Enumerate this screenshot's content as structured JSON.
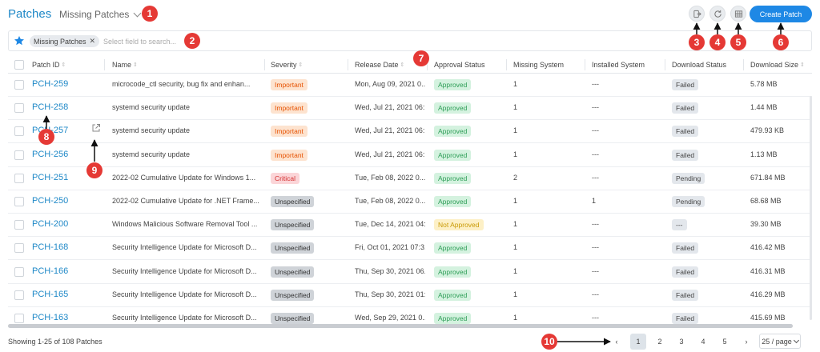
{
  "header": {
    "title": "Patches",
    "view_selector": "Missing Patches",
    "create_button": "Create Patch"
  },
  "icons": {
    "export": "export-icon",
    "refresh": "refresh-icon",
    "columns": "column-grid-icon",
    "favorite": "star-icon"
  },
  "search": {
    "chip_label": "Missing Patches",
    "placeholder": "Select field to search..."
  },
  "table": {
    "columns": [
      "Patch ID",
      "Name",
      "Severity",
      "Release Date",
      "Approval Status",
      "Missing System",
      "Installed System",
      "Download Status",
      "Download Size"
    ],
    "rows": [
      {
        "id": "PCH-259",
        "name": "microcode_ctl security, bug fix and enhan...",
        "severity": "Important",
        "release": "Mon, Aug 09, 2021 0...",
        "approval": "Approved",
        "missing": "1",
        "installed": "---",
        "download": "Failed",
        "size": "5.78 MB"
      },
      {
        "id": "PCH-258",
        "name": "systemd security update",
        "severity": "Important",
        "release": "Wed, Jul 21, 2021 06:...",
        "approval": "Approved",
        "missing": "1",
        "installed": "---",
        "download": "Failed",
        "size": "1.44 MB"
      },
      {
        "id": "PCH-257",
        "name": "systemd security update",
        "severity": "Important",
        "release": "Wed, Jul 21, 2021 06:...",
        "approval": "Approved",
        "missing": "1",
        "installed": "---",
        "download": "Failed",
        "size": "479.93 KB"
      },
      {
        "id": "PCH-256",
        "name": "systemd security update",
        "severity": "Important",
        "release": "Wed, Jul 21, 2021 06:...",
        "approval": "Approved",
        "missing": "1",
        "installed": "---",
        "download": "Failed",
        "size": "1.13 MB"
      },
      {
        "id": "PCH-251",
        "name": "2022-02 Cumulative Update for Windows 1...",
        "severity": "Critical",
        "release": "Tue, Feb 08, 2022 0...",
        "approval": "Approved",
        "missing": "2",
        "installed": "---",
        "download": "Pending",
        "size": "671.84 MB"
      },
      {
        "id": "PCH-250",
        "name": "2022-02 Cumulative Update for .NET Frame...",
        "severity": "Unspecified",
        "release": "Tue, Feb 08, 2022 0...",
        "approval": "Approved",
        "missing": "1",
        "installed": "1",
        "download": "Pending",
        "size": "68.68 MB"
      },
      {
        "id": "PCH-200",
        "name": "Windows Malicious Software Removal Tool ...",
        "severity": "Unspecified",
        "release": "Tue, Dec 14, 2021 04:...",
        "approval": "Not Approved",
        "missing": "1",
        "installed": "---",
        "download": "---",
        "size": "39.30 MB"
      },
      {
        "id": "PCH-168",
        "name": "Security Intelligence Update for Microsoft D...",
        "severity": "Unspecified",
        "release": "Fri, Oct 01, 2021 07:3...",
        "approval": "Approved",
        "missing": "1",
        "installed": "---",
        "download": "Failed",
        "size": "416.42 MB"
      },
      {
        "id": "PCH-166",
        "name": "Security Intelligence Update for Microsoft D...",
        "severity": "Unspecified",
        "release": "Thu, Sep 30, 2021 06...",
        "approval": "Approved",
        "missing": "1",
        "installed": "---",
        "download": "Failed",
        "size": "416.31 MB"
      },
      {
        "id": "PCH-165",
        "name": "Security Intelligence Update for Microsoft D...",
        "severity": "Unspecified",
        "release": "Thu, Sep 30, 2021 01:...",
        "approval": "Approved",
        "missing": "1",
        "installed": "---",
        "download": "Failed",
        "size": "416.29 MB"
      },
      {
        "id": "PCH-163",
        "name": "Security Intelligence Update for Microsoft D...",
        "severity": "Unspecified",
        "release": "Wed, Sep 29, 2021 0...",
        "approval": "Approved",
        "missing": "1",
        "installed": "---",
        "download": "Failed",
        "size": "415.69 MB"
      }
    ]
  },
  "footer": {
    "summary": "Showing 1-25 of 108 Patches",
    "pages": [
      "1",
      "2",
      "3",
      "4",
      "5"
    ],
    "prev": "‹",
    "next": "›",
    "per_page": "25 / page",
    "active_page": "1"
  },
  "colors": {
    "accent": "#1e88c7",
    "important_bg": "#fde3cf",
    "important_text": "#e65100",
    "critical_bg": "#fbd5d8",
    "critical_text": "#d32f2f",
    "unspecified_bg": "#cfd3d8",
    "unspecified_text": "#333333",
    "approved_bg": "#d4f2df",
    "approved_text": "#2e9e57",
    "not_approved_bg": "#fdf0c6",
    "not_approved_text": "#c99a06",
    "status_bg": "#e3e7ec",
    "marker": "#e53935"
  },
  "markers": [
    "1",
    "2",
    "3",
    "4",
    "5",
    "6",
    "7",
    "8",
    "9",
    "10"
  ]
}
